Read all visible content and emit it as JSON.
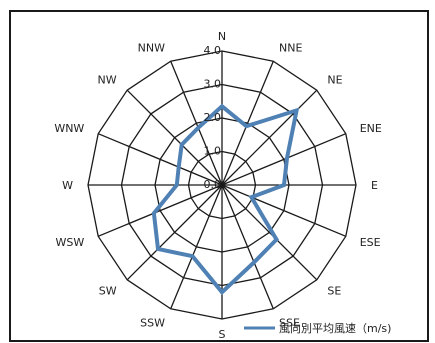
{
  "chart_data": {
    "type": "radar",
    "title": "",
    "categories": [
      "N",
      "NNE",
      "NE",
      "ENE",
      "E",
      "ESE",
      "SE",
      "SSE",
      "S",
      "SSW",
      "SW",
      "WSW",
      "W",
      "WNW",
      "NW",
      "NNW"
    ],
    "rlim": [
      0,
      4.0
    ],
    "ticks": [
      0,
      1.0,
      2.0,
      3.0,
      4.0
    ],
    "tick_labels": [
      "0.0",
      "1.0",
      "2.0",
      "3.0",
      "4.0"
    ],
    "grid": true,
    "legend_position": "bottom-right",
    "series": [
      {
        "name": "風向別平均風速（m/s)",
        "color": "#4f81b4",
        "values": [
          2.35,
          1.9,
          3.15,
          2.1,
          1.85,
          0.95,
          2.3,
          2.5,
          3.2,
          2.3,
          2.7,
          2.2,
          1.35,
          1.4,
          1.7,
          1.85
        ]
      }
    ]
  }
}
